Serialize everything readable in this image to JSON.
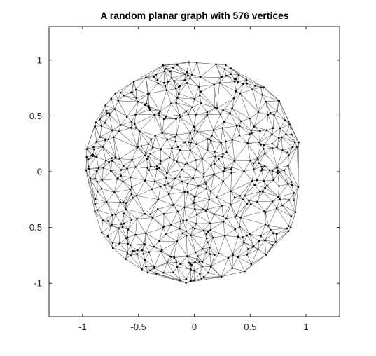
{
  "chart_data": {
    "type": "scatter",
    "title": "A random planar graph with 576 vertices",
    "xlabel": "",
    "ylabel": "",
    "xlim": [
      -1.3,
      1.3
    ],
    "ylim": [
      -1.3,
      1.3
    ],
    "x_ticks": [
      -1,
      -0.5,
      0,
      0.5,
      1
    ],
    "x_tick_labels": [
      "-1",
      "-0.5",
      "0",
      "0.5",
      "1"
    ],
    "y_ticks": [
      -1,
      -0.5,
      0,
      0.5,
      1
    ],
    "y_tick_labels": [
      "-1",
      "-0.5",
      "0",
      "0.5",
      "1"
    ],
    "vertex_count": 576,
    "graph_region": "unit disk",
    "grid": false,
    "box": true,
    "colors": {
      "edge": "#555555",
      "vertex": "#000000",
      "axes": "#262626"
    }
  }
}
